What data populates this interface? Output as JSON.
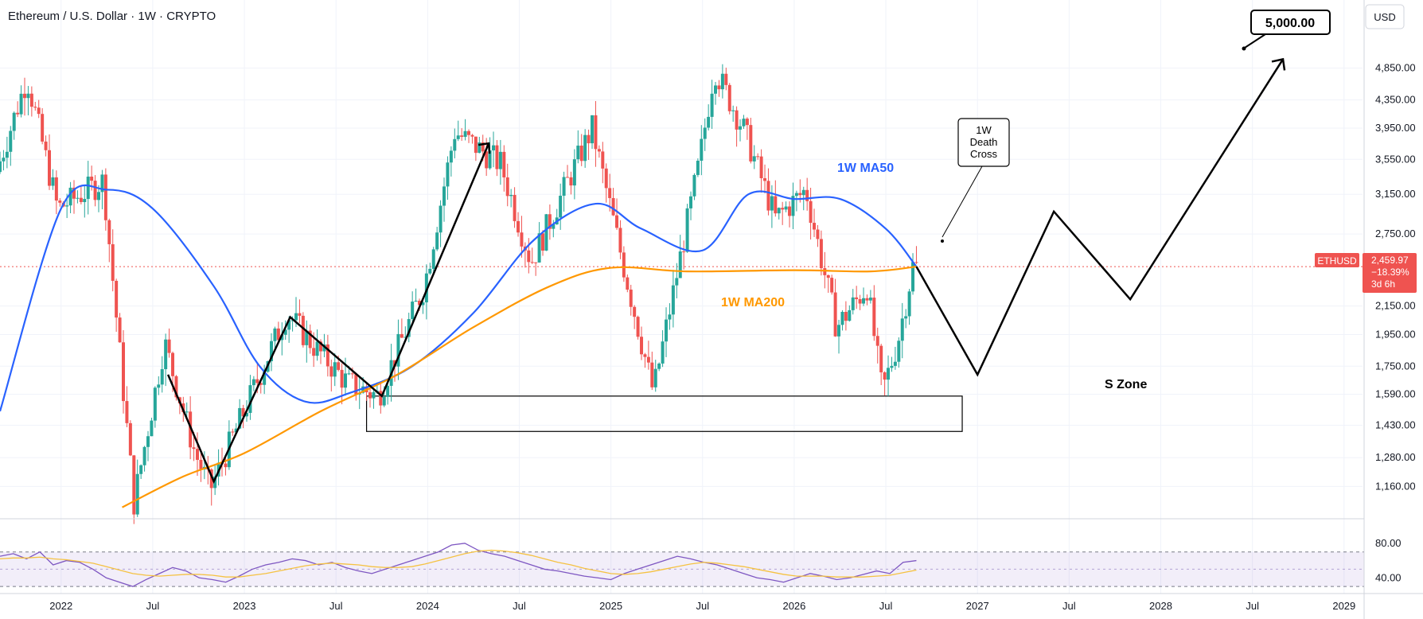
{
  "header": {
    "title": "Ethereum / U.S. Dollar · 1W · CRYPTO",
    "currency": "USD"
  },
  "price_tag": {
    "symbol": "ETHUSD",
    "price": "2,459.97",
    "change": "−18.39%",
    "countdown": "3d 6h"
  },
  "colors": {
    "up": "#26a69a",
    "down": "#ef5350",
    "ma50": "#2962ff",
    "ma200": "#ff9800",
    "rsi": "#7e57c2",
    "rsi_ma": "#f5c242",
    "projection": "#000000",
    "price_line": "#ef5350"
  },
  "annotations": {
    "target": "5,000.00",
    "death_cross": [
      "1W",
      "Death",
      "Cross"
    ],
    "ma50_label": "1W MA50",
    "ma200_label": "1W MA200",
    "zone_label": "S Zone"
  },
  "chart_data": [
    {
      "type": "candlestick",
      "title": "Ethereum / U.S. Dollar · 1W · CRYPTO",
      "y_scale": "log",
      "ylim": [
        1050,
        5200
      ],
      "y_ticks": [
        "4,850.00",
        "4,350.00",
        "3,950.00",
        "3,550.00",
        "3,150.00",
        "2,750.00",
        "2,150.00",
        "1,950.00",
        "1,750.00",
        "1,590.00",
        "1,430.00",
        "1,280.00",
        "1,160.00"
      ],
      "x_ticks": [
        "2022",
        "Jul",
        "2023",
        "Jul",
        "2024",
        "Jul",
        "2025",
        "Jul",
        "2026",
        "Jul",
        "2027",
        "Jul",
        "2028",
        "Jul",
        "2029"
      ],
      "last_price": 2459.97,
      "price_path": [
        [
          "2021-09",
          3400
        ],
        [
          "2021-11",
          4700
        ],
        [
          "2022-01",
          3000
        ],
        [
          "2022-04",
          3300
        ],
        [
          "2022-06",
          1100
        ],
        [
          "2022-08",
          1900
        ],
        [
          "2022-10",
          1300
        ],
        [
          "2022-11",
          1150
        ],
        [
          "2023-04",
          2100
        ],
        [
          "2023-06",
          1850
        ],
        [
          "2023-08",
          1650
        ],
        [
          "2023-10",
          1580
        ],
        [
          "2024-01",
          2300
        ],
        [
          "2024-03",
          3900
        ],
        [
          "2024-06",
          3500
        ],
        [
          "2024-08",
          2500
        ],
        [
          "2024-12",
          3950
        ],
        [
          "2025-02",
          2500
        ],
        [
          "2025-04",
          1600
        ],
        [
          "2025-07",
          3500
        ],
        [
          "2025-08",
          4850
        ],
        [
          "2025-10",
          3900
        ],
        [
          "2025-12",
          2900
        ],
        [
          "2026-02",
          3200
        ],
        [
          "2026-04",
          2000
        ],
        [
          "2026-06",
          2300
        ],
        [
          "2026-07",
          1600
        ],
        [
          "2026-08",
          1900
        ],
        [
          "2026-09",
          2460
        ]
      ],
      "series": [
        {
          "name": "1W MA50",
          "values": [
            [
              "2021-09",
              1500
            ],
            [
              "2022-01",
              3000
            ],
            [
              "2022-04",
              3200
            ],
            [
              "2022-07",
              3000
            ],
            [
              "2022-11",
              2300
            ],
            [
              "2023-02",
              1750
            ],
            [
              "2023-05",
              1550
            ],
            [
              "2023-08",
              1600
            ],
            [
              "2023-12",
              1750
            ],
            [
              "2024-04",
              2100
            ],
            [
              "2024-08",
              2700
            ],
            [
              "2024-12",
              3050
            ],
            [
              "2025-03",
              2800
            ],
            [
              "2025-07",
              2600
            ],
            [
              "2025-10",
              3150
            ],
            [
              "2026-01",
              3100
            ],
            [
              "2026-04",
              3100
            ],
            [
              "2026-07",
              2800
            ],
            [
              "2026-09",
              2460
            ]
          ]
        },
        {
          "name": "1W MA200",
          "values": [
            [
              "2022-05",
              1080
            ],
            [
              "2022-09",
              1200
            ],
            [
              "2023-01",
              1300
            ],
            [
              "2023-06",
              1500
            ],
            [
              "2023-11",
              1700
            ],
            [
              "2024-04",
              2000
            ],
            [
              "2024-09",
              2300
            ],
            [
              "2025-01",
              2450
            ],
            [
              "2025-06",
              2420
            ],
            [
              "2026-01",
              2430
            ],
            [
              "2026-06",
              2420
            ],
            [
              "2026-09",
              2460
            ]
          ]
        }
      ],
      "projection": [
        [
          "2026-09",
          2460
        ],
        [
          "2027-01",
          1700
        ],
        [
          "2027-06",
          2970
        ],
        [
          "2027-11",
          2200
        ],
        [
          "2028-09",
          5000
        ]
      ],
      "wave_lines": [
        [
          [
            "2022-08",
            1700
          ],
          [
            "2022-11",
            1180
          ],
          [
            "2023-04",
            2070
          ],
          [
            "2023-10",
            1580
          ],
          [
            "2024-05",
            3750
          ]
        ]
      ],
      "support_zone": {
        "label": "S Zone",
        "low": 1400,
        "high": 1580,
        "from": "2023-09",
        "to": "2026-12"
      }
    },
    {
      "type": "line",
      "title": "",
      "ylim": [
        20,
        90
      ],
      "y_ticks": [
        "80.00",
        "40.00"
      ],
      "band": [
        30,
        70
      ],
      "series": [
        {
          "name": "",
          "values": [
            65,
            68,
            62,
            70,
            55,
            60,
            58,
            50,
            40,
            35,
            30,
            38,
            45,
            52,
            48,
            40,
            38,
            35,
            42,
            50,
            55,
            58,
            62,
            60,
            55,
            58,
            52,
            48,
            45,
            50,
            55,
            60,
            65,
            70,
            78,
            80,
            72,
            68,
            65,
            60,
            55,
            50,
            48,
            45,
            42,
            40,
            38,
            45,
            50,
            55,
            60,
            65,
            62,
            58,
            55,
            50,
            45,
            40,
            38,
            35,
            40,
            45,
            42,
            38,
            40,
            44,
            48,
            45,
            58,
            60
          ]
        },
        {
          "name": "",
          "values": [
            62,
            63,
            63,
            64,
            62,
            61,
            59,
            57,
            53,
            49,
            45,
            43,
            42,
            43,
            44,
            44,
            43,
            41,
            41,
            43,
            45,
            48,
            51,
            54,
            56,
            57,
            56,
            55,
            53,
            52,
            52,
            53,
            56,
            60,
            64,
            68,
            71,
            72,
            71,
            69,
            66,
            62,
            58,
            55,
            51,
            48,
            45,
            44,
            45,
            47,
            50,
            53,
            56,
            58,
            57,
            55,
            53,
            50,
            47,
            44,
            42,
            42,
            42,
            41,
            41,
            41,
            42,
            43,
            46,
            49
          ]
        }
      ]
    }
  ]
}
